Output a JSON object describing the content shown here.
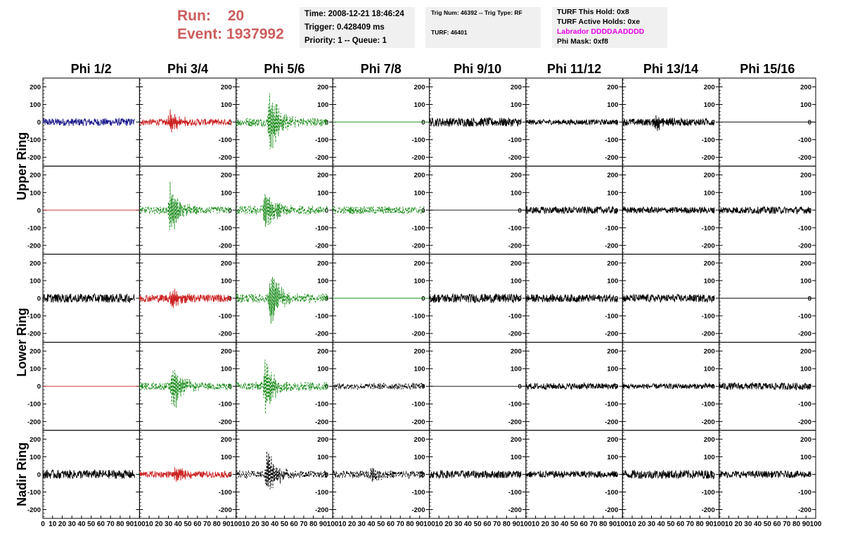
{
  "header": {
    "run_label": "Run:",
    "run_value": "20",
    "event_label": "Event:",
    "event_value": "1937992"
  },
  "time_pane": {
    "line1": "Time: 2008-12-21 18:46:24",
    "line2": "Trigger: 0.428409 ms",
    "line3": "Priority: 1 -- Queue: 1"
  },
  "trig_pane": {
    "line1": "Trig Num: 46392 -- Trig Type: RF",
    "line2": "TURF: 46401"
  },
  "turf_pane": {
    "line1": "TURF This Hold: 0x8",
    "line2": "TURF Active Holds: 0xe",
    "line3": "Labrador DDDDAADDDD",
    "line4": "Phi Mask: 0xf8"
  },
  "colors": {
    "blue": "#1a1a8c",
    "red": "#cc2222",
    "green": "#1a8c1a",
    "black": "#000000",
    "pane_bg": "#f0f0f0",
    "header_red": "#cd5c5c",
    "labrador_magenta": "#e800e8"
  },
  "chart_data": {
    "type": "line",
    "columns": [
      "Phi 1/2",
      "Phi 3/4",
      "Phi 5/6",
      "Phi 7/8",
      "Phi 9/10",
      "Phi 11/12",
      "Phi 13/14",
      "Phi 15/16"
    ],
    "rows": [
      "Upper Ring",
      "Upper Ring",
      "Lower Ring",
      "Lower Ring",
      "Nadir Ring"
    ],
    "row_labels": [
      "Upper Ring",
      "Lower Ring",
      "Nadir Ring"
    ],
    "xlim": [
      0,
      100
    ],
    "ylim": [
      -250,
      250
    ],
    "y_ticks": [
      -200,
      -100,
      0,
      100,
      200
    ],
    "y_tick_labels": [
      "-200",
      "-100",
      "0",
      "100",
      "200"
    ],
    "x_ticks": [
      0,
      10,
      20,
      30,
      40,
      50,
      60,
      70,
      80,
      90,
      100
    ],
    "x_tick_labels": [
      "0",
      "10",
      "20",
      "30",
      "40",
      "50",
      "60",
      "70",
      "80",
      "90",
      "100"
    ],
    "grid": false,
    "panels": [
      [
        {
          "style": "solid",
          "color": "blue",
          "noise": 22,
          "burst_center": 0,
          "burst_amp": 0,
          "flat": false
        },
        {
          "style": "solid",
          "color": "red",
          "noise": 18,
          "burst_center": 32,
          "burst_amp": 75,
          "flat": false
        },
        {
          "style": "dashed",
          "color": "green",
          "noise": 25,
          "burst_center": 35,
          "burst_amp": 215,
          "flat": false
        },
        {
          "style": "solid",
          "color": "green",
          "noise": 0,
          "burst_center": 0,
          "burst_amp": 0,
          "flat": true
        },
        {
          "style": "solid",
          "color": "black",
          "noise": 25,
          "burst_center": 0,
          "burst_amp": 0,
          "flat": false
        },
        {
          "style": "solid",
          "color": "black",
          "noise": 15,
          "burst_center": 0,
          "burst_amp": 0,
          "flat": false
        },
        {
          "style": "solid",
          "color": "black",
          "noise": 20,
          "burst_center": 34,
          "burst_amp": 60,
          "flat": false
        },
        {
          "style": "solid",
          "color": "black",
          "noise": 0,
          "burst_center": 0,
          "burst_amp": 0,
          "flat": true
        }
      ],
      [
        {
          "style": "solid",
          "color": "red",
          "noise": 0,
          "burst_center": 0,
          "burst_amp": 0,
          "flat": true
        },
        {
          "style": "dashed",
          "color": "green",
          "noise": 20,
          "burst_center": 32,
          "burst_amp": 170,
          "flat": false
        },
        {
          "style": "dashed",
          "color": "green",
          "noise": 25,
          "burst_center": 30,
          "burst_amp": 150,
          "flat": false
        },
        {
          "style": "dashed",
          "color": "green",
          "noise": 22,
          "burst_center": 0,
          "burst_amp": 0,
          "flat": false
        },
        {
          "style": "solid",
          "color": "black",
          "noise": 0,
          "burst_center": 0,
          "burst_amp": 0,
          "flat": true
        },
        {
          "style": "solid",
          "color": "black",
          "noise": 20,
          "burst_center": 0,
          "burst_amp": 0,
          "flat": false
        },
        {
          "style": "solid",
          "color": "black",
          "noise": 18,
          "burst_center": 0,
          "burst_amp": 0,
          "flat": false
        },
        {
          "style": "solid",
          "color": "black",
          "noise": 20,
          "burst_center": 0,
          "burst_amp": 0,
          "flat": false
        }
      ],
      [
        {
          "style": "solid",
          "color": "black",
          "noise": 25,
          "burst_center": 0,
          "burst_amp": 0,
          "flat": false
        },
        {
          "style": "solid",
          "color": "red",
          "noise": 22,
          "burst_center": 34,
          "burst_amp": 80,
          "flat": false
        },
        {
          "style": "dashed",
          "color": "green",
          "noise": 25,
          "burst_center": 36,
          "burst_amp": 200,
          "flat": false
        },
        {
          "style": "solid",
          "color": "green",
          "noise": 0,
          "burst_center": 0,
          "burst_amp": 0,
          "flat": true
        },
        {
          "style": "solid",
          "color": "black",
          "noise": 25,
          "burst_center": 0,
          "burst_amp": 0,
          "flat": false
        },
        {
          "style": "solid",
          "color": "black",
          "noise": 22,
          "burst_center": 0,
          "burst_amp": 0,
          "flat": false
        },
        {
          "style": "solid",
          "color": "black",
          "noise": 22,
          "burst_center": 0,
          "burst_amp": 0,
          "flat": false
        },
        {
          "style": "solid",
          "color": "black",
          "noise": 0,
          "burst_center": 0,
          "burst_amp": 0,
          "flat": true
        }
      ],
      [
        {
          "style": "solid",
          "color": "red",
          "noise": 0,
          "burst_center": 0,
          "burst_amp": 0,
          "flat": true
        },
        {
          "style": "dashed",
          "color": "green",
          "noise": 20,
          "burst_center": 34,
          "burst_amp": 170,
          "flat": false
        },
        {
          "style": "dashed",
          "color": "green",
          "noise": 25,
          "burst_center": 30,
          "burst_amp": 180,
          "flat": false
        },
        {
          "style": "dashed",
          "color": "black",
          "noise": 18,
          "burst_center": 0,
          "burst_amp": 0,
          "flat": false
        },
        {
          "style": "solid",
          "color": "black",
          "noise": 0,
          "burst_center": 0,
          "burst_amp": 0,
          "flat": true
        },
        {
          "style": "solid",
          "color": "black",
          "noise": 18,
          "burst_center": 0,
          "burst_amp": 0,
          "flat": false
        },
        {
          "style": "solid",
          "color": "black",
          "noise": 15,
          "burst_center": 0,
          "burst_amp": 0,
          "flat": false
        },
        {
          "style": "solid",
          "color": "black",
          "noise": 20,
          "burst_center": 0,
          "burst_amp": 0,
          "flat": false
        }
      ],
      [
        {
          "style": "solid",
          "color": "black",
          "noise": 25,
          "burst_center": 0,
          "burst_amp": 0,
          "flat": false
        },
        {
          "style": "solid",
          "color": "red",
          "noise": 18,
          "burst_center": 38,
          "burst_amp": 55,
          "flat": false
        },
        {
          "style": "dashed",
          "color": "black",
          "noise": 20,
          "burst_center": 32,
          "burst_amp": 160,
          "flat": false
        },
        {
          "style": "dashed",
          "color": "black",
          "noise": 22,
          "burst_center": 40,
          "burst_amp": 40,
          "flat": false
        },
        {
          "style": "solid",
          "color": "black",
          "noise": 22,
          "burst_center": 0,
          "burst_amp": 0,
          "flat": false
        },
        {
          "style": "solid",
          "color": "black",
          "noise": 20,
          "burst_center": 0,
          "burst_amp": 0,
          "flat": false
        },
        {
          "style": "solid",
          "color": "black",
          "noise": 25,
          "burst_center": 0,
          "burst_amp": 0,
          "flat": false
        },
        {
          "style": "solid",
          "color": "black",
          "noise": 20,
          "burst_center": 0,
          "burst_amp": 0,
          "flat": false
        }
      ]
    ]
  }
}
